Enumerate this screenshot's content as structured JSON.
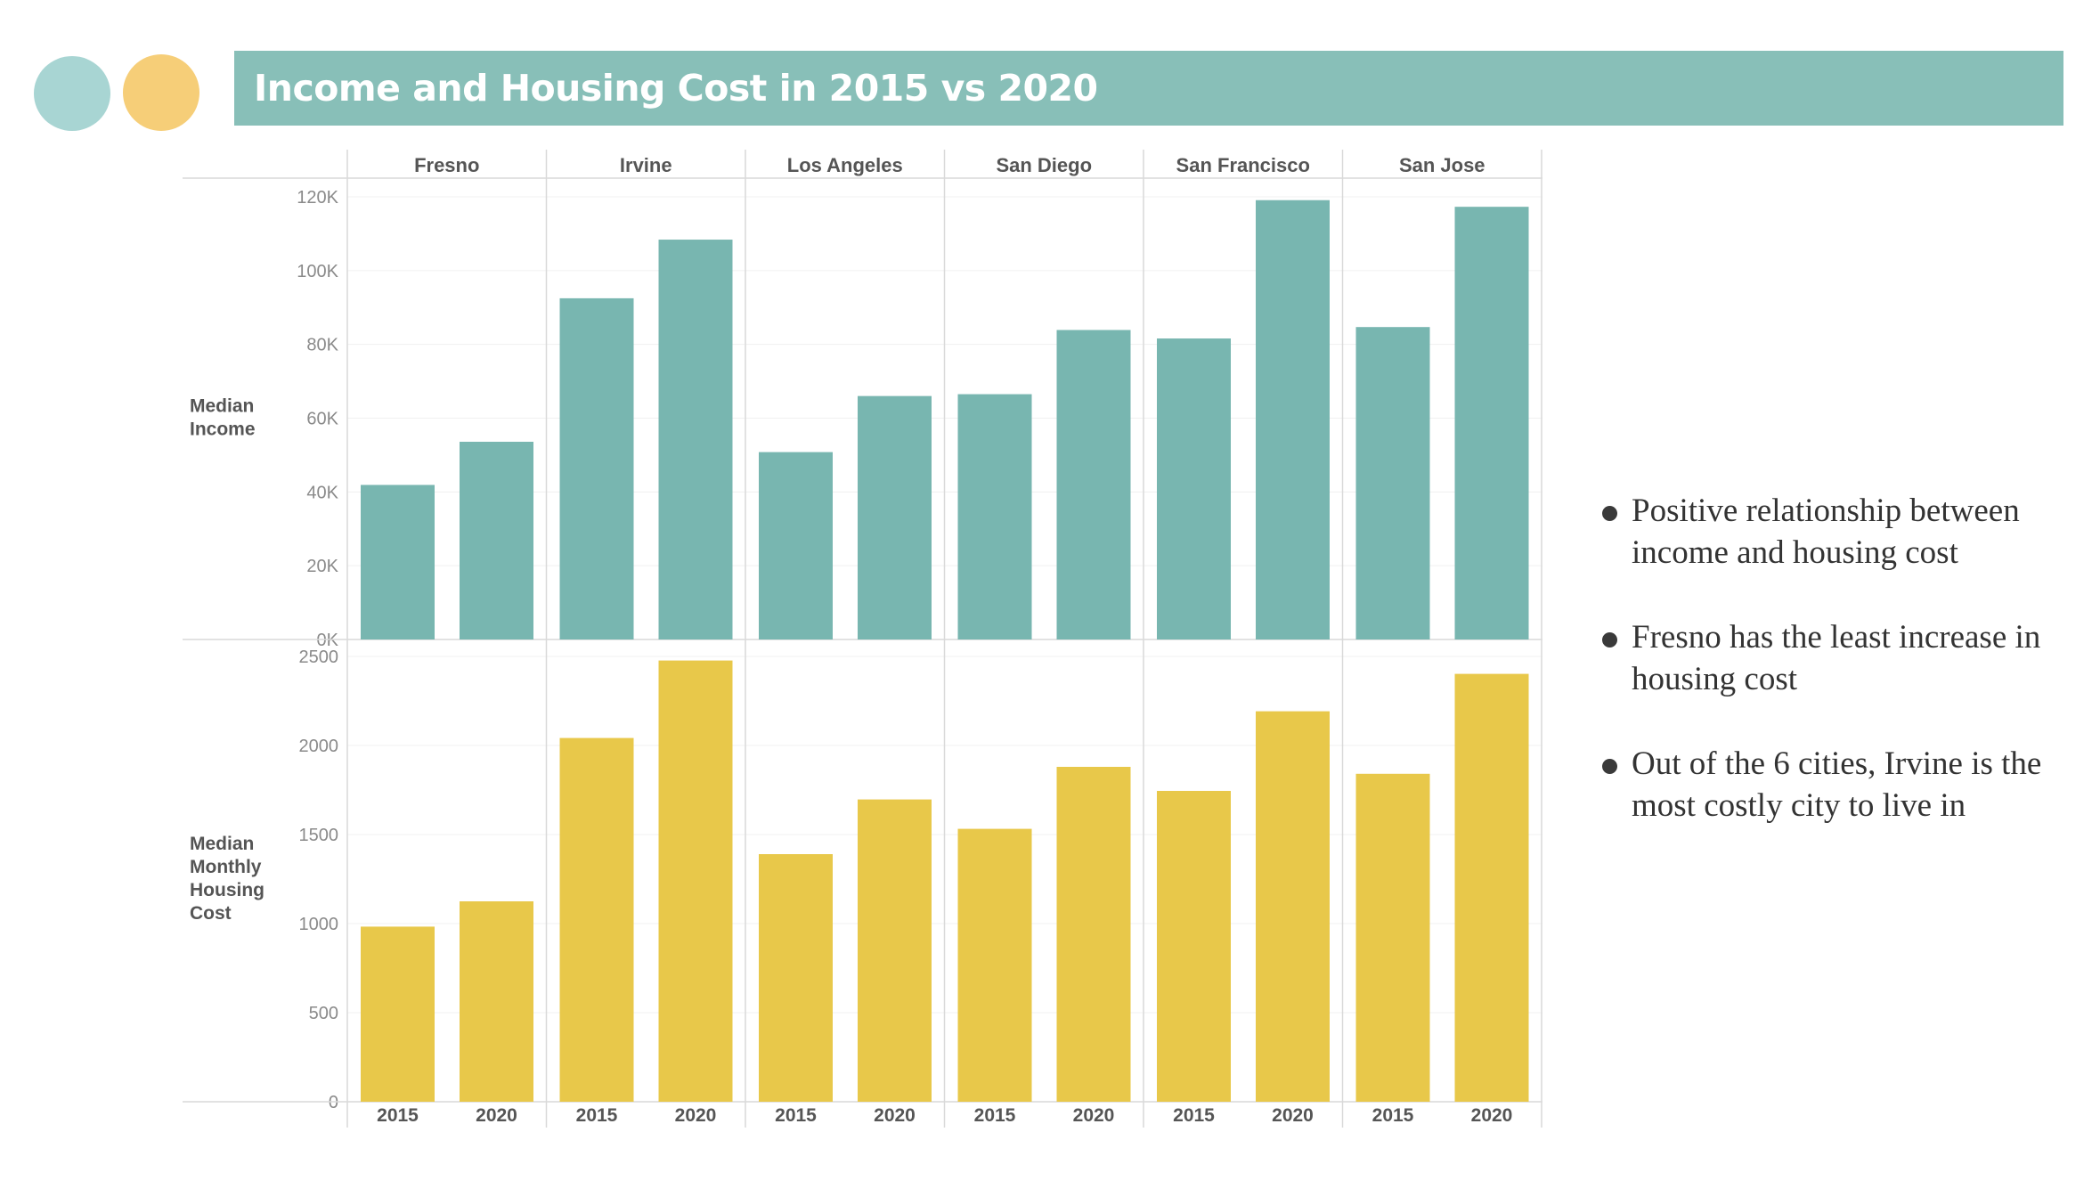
{
  "slide": {
    "title": "Income and Housing Cost in 2015 vs 2020",
    "decor_colors": [
      "#a8d5d3",
      "#f6ce78"
    ],
    "title_bar_color": "#88bfb8"
  },
  "bullets": [
    "Positive relationship between income and housing cost",
    "Fresno has the least increase in housing cost",
    "Out of the 6 cities, Irvine is the most costly city to live in"
  ],
  "chart_data": {
    "type": "bar",
    "cities": [
      "Fresno",
      "Irvine",
      "Los Angeles",
      "San Diego",
      "San Francisco",
      "San Jose"
    ],
    "years": [
      "2015",
      "2020"
    ],
    "grid": true,
    "panels": [
      {
        "ylabel": "Median Income",
        "color": "#78b6b0",
        "ylim": [
          0,
          120000
        ],
        "ticks": [
          0,
          20000,
          40000,
          60000,
          80000,
          100000,
          120000
        ],
        "tick_labels": [
          "0K",
          "20K",
          "40K",
          "60K",
          "80K",
          "100K",
          "120K"
        ],
        "series": [
          {
            "name": "2015",
            "values": [
              41900,
              92500,
              50800,
              66500,
              81600,
              84700
            ]
          },
          {
            "name": "2020",
            "values": [
              53600,
              108400,
              66000,
              83900,
              119100,
              117300
            ]
          }
        ]
      },
      {
        "ylabel": "Median Monthly Housing Cost",
        "color": "#e8c84a",
        "ylim": [
          0,
          2500
        ],
        "ticks": [
          0,
          500,
          1000,
          1500,
          2000,
          2500
        ],
        "tick_labels": [
          "0",
          "500",
          "1000",
          "1500",
          "2000",
          "2500"
        ],
        "series": [
          {
            "name": "2015",
            "values": [
              983,
              2042,
              1390,
              1532,
              1745,
              1841
            ]
          },
          {
            "name": "2020",
            "values": [
              1125,
              2477,
              1697,
              1880,
              2192,
              2402
            ]
          }
        ]
      }
    ]
  }
}
